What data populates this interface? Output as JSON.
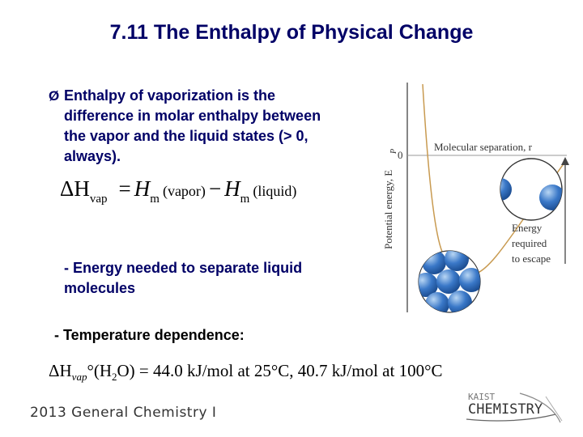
{
  "slide": {
    "title": "7.11 The Enthalpy of Physical Change",
    "bullet_marker": "Ø",
    "bullet_text": "Enthalpy of vaporization is the difference in molar enthalpy between the vapor and the liquid states (> 0, always).",
    "equation1": {
      "delta_h": "ΔH",
      "vap_sub": "vap",
      "equals": "=",
      "h1": "H",
      "m_sub1": "m",
      "vapor": "(vapor)",
      "minus": "−",
      "h2": "H",
      "m_sub2": "m",
      "liquid": "(liquid)"
    },
    "note_energy": "- Energy needed to separate liquid molecules",
    "note_temperature": "- Temperature dependence:",
    "equation2": {
      "delta_h": "ΔH",
      "vap_sub": "vap",
      "degree_formula": "°(H",
      "two_sub": "2",
      "rest": "O) = 44.0 kJ/mol at 25°C, 40.7 kJ/mol at 100°C"
    },
    "footer": "2013 General Chemistry I",
    "logo": {
      "line1": "KAIST",
      "line2": "CHEMISTRY"
    }
  },
  "diagram": {
    "y_axis_label": "Potential energy, E",
    "y_axis_sub": "P",
    "zero_label": "0",
    "x_axis_label": "Molecular separation, r",
    "annotation": [
      "Energy",
      "required",
      "to escape"
    ],
    "colors": {
      "curve": "#c89a50",
      "molecule": "#3a78c8",
      "molecule_light": "#9cc4ee",
      "arrow": "#444444"
    }
  }
}
